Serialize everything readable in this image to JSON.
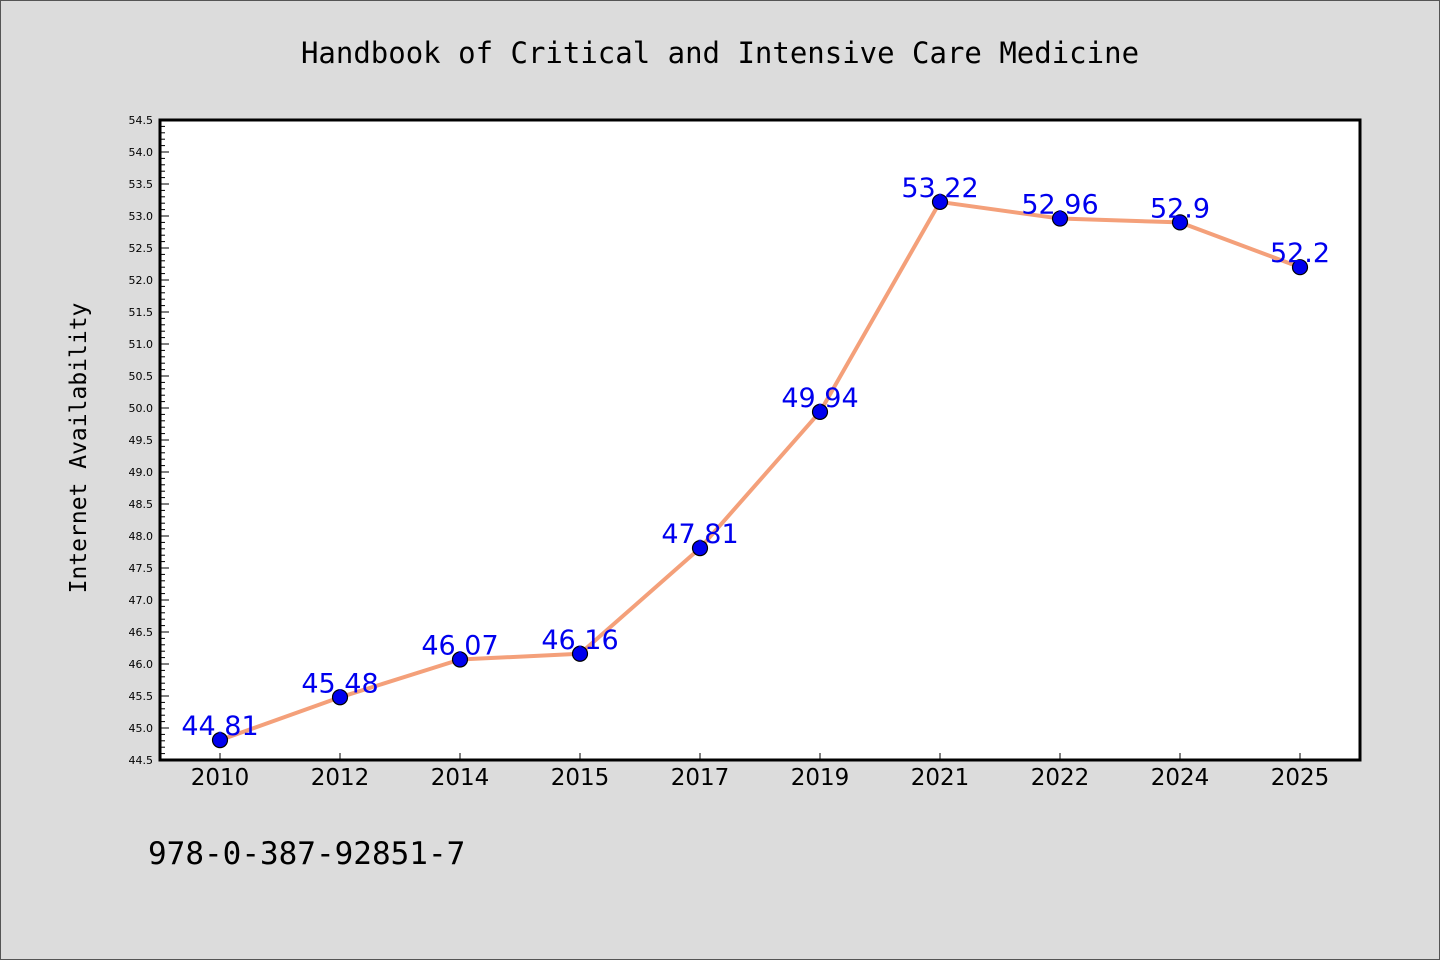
{
  "chart_data": {
    "type": "line",
    "title": "Handbook of Critical and Intensive Care Medicine",
    "xlabel": "",
    "ylabel": "Internet Availability",
    "categories": [
      "2010",
      "2012",
      "2014",
      "2015",
      "2017",
      "2019",
      "2021",
      "2022",
      "2024",
      "2025"
    ],
    "values": [
      44.81,
      45.48,
      46.07,
      46.16,
      47.81,
      49.94,
      53.22,
      52.96,
      52.9,
      52.2
    ],
    "data_labels": [
      "44.81",
      "45.48",
      "46.07",
      "46.16",
      "47.81",
      "49.94",
      "53.22",
      "52.96",
      "52.9",
      "52.2"
    ],
    "ylim": [
      44.5,
      54.5
    ],
    "yticks": [
      "44.5",
      "45.0",
      "45.5",
      "46.0",
      "46.5",
      "47.0",
      "47.5",
      "48.0",
      "48.5",
      "49.0",
      "49.5",
      "50.0",
      "50.5",
      "51.0",
      "51.5",
      "52.0",
      "52.5",
      "53.0",
      "53.5",
      "54.0",
      "54.5"
    ],
    "grid": false,
    "legend": "none",
    "line_color": "#f4a07a",
    "marker_color": "#0000ee",
    "label_color": "#0000ee",
    "background_color": "#dcdcdc",
    "plot_background_color": "#ffffff"
  },
  "footer": {
    "isbn": "978-0-387-92851-7"
  }
}
